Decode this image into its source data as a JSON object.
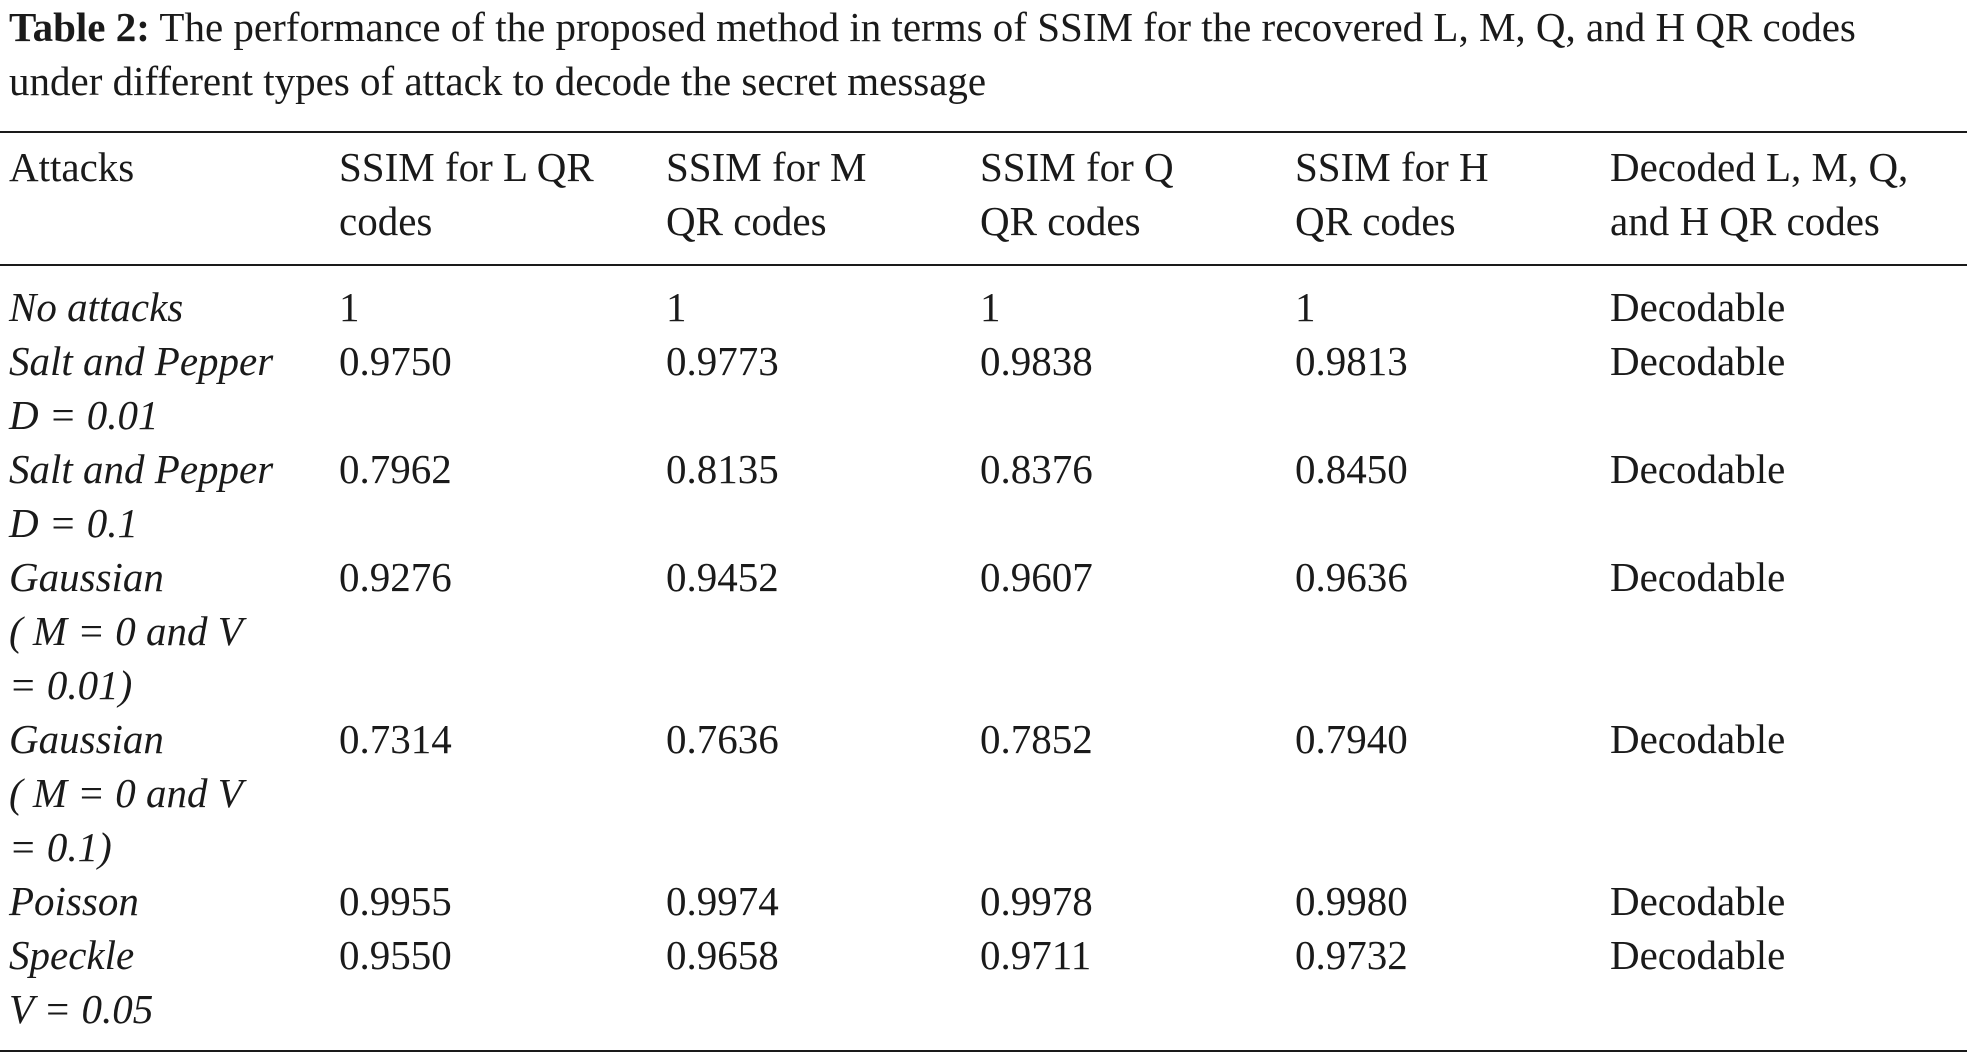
{
  "caption": {
    "label": "Table 2:",
    "text": " The performance of the proposed method in terms of SSIM for the recovered L, M, Q, and H QR codes under different types of attack to decode the secret message"
  },
  "table": {
    "headers": [
      [
        "Attacks"
      ],
      [
        "SSIM for L QR",
        "codes"
      ],
      [
        "SSIM for M",
        "QR codes"
      ],
      [
        "SSIM for Q",
        "QR codes"
      ],
      [
        "SSIM for H",
        "QR codes"
      ],
      [
        "Decoded L, M, Q,",
        "and H QR codes"
      ]
    ],
    "rows": [
      {
        "attack": [
          "No attacks"
        ],
        "values": [
          "1",
          "1",
          "1",
          "1"
        ],
        "decoded": "Decodable"
      },
      {
        "attack": [
          "Salt and Pepper",
          "D = 0.01"
        ],
        "values": [
          "0.9750",
          "0.9773",
          "0.9838",
          "0.9813"
        ],
        "decoded": "Decodable"
      },
      {
        "attack": [
          "Salt and Pepper",
          "D = 0.1"
        ],
        "values": [
          "0.7962",
          "0.8135",
          "0.8376",
          "0.8450"
        ],
        "decoded": "Decodable"
      },
      {
        "attack": [
          "Gaussian",
          "( M = 0 and V",
          "= 0.01)"
        ],
        "values": [
          "0.9276",
          "0.9452",
          "0.9607",
          "0.9636"
        ],
        "decoded": "Decodable"
      },
      {
        "attack": [
          "Gaussian",
          "( M = 0 and V",
          "= 0.1)"
        ],
        "values": [
          "0.7314",
          "0.7636",
          "0.7852",
          "0.7940"
        ],
        "decoded": "Decodable"
      },
      {
        "attack": [
          "Poisson"
        ],
        "values": [
          "0.9955",
          "0.9974",
          "0.9978",
          "0.9980"
        ],
        "decoded": "Decodable"
      },
      {
        "attack": [
          "Speckle",
          "V = 0.05"
        ],
        "values": [
          "0.9550",
          "0.9658",
          "0.9711",
          "0.9732"
        ],
        "decoded": "Decodable"
      }
    ]
  }
}
